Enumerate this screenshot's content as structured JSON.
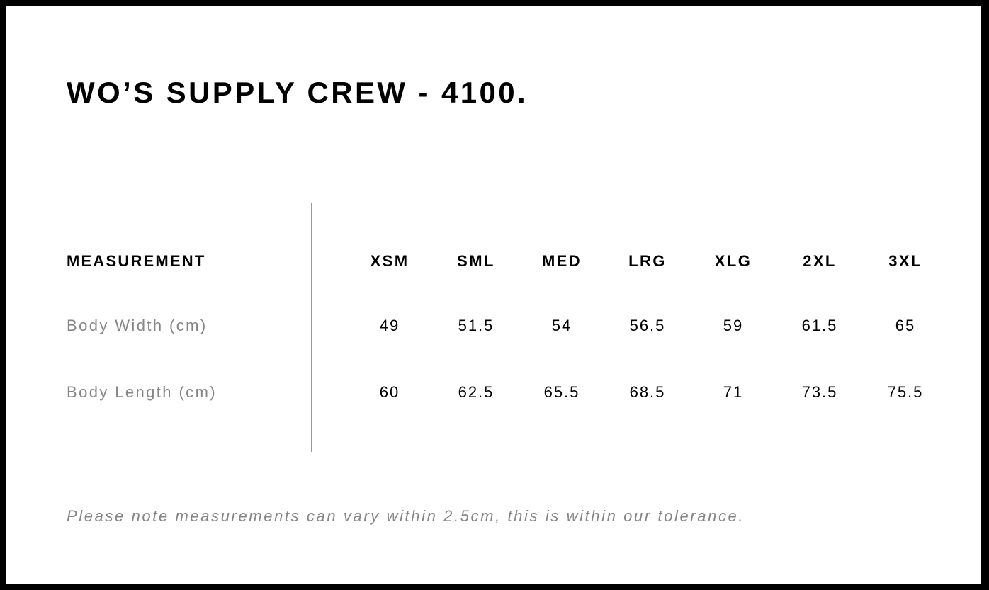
{
  "title": "WO’S SUPPLY CREW - 4100.",
  "table": {
    "header_label": "MEASUREMENT",
    "sizes": [
      "XSM",
      "SML",
      "MED",
      "LRG",
      "XLG",
      "2XL",
      "3XL"
    ],
    "rows": [
      {
        "label": "Body Width (cm)",
        "values": [
          "49",
          "51.5",
          "54",
          "56.5",
          "59",
          "61.5",
          "65"
        ]
      },
      {
        "label": "Body Length (cm)",
        "values": [
          "60",
          "62.5",
          "65.5",
          "68.5",
          "71",
          "73.5",
          "75.5"
        ]
      }
    ]
  },
  "note": "Please note measurements can vary within 2.5cm, this is within our tolerance."
}
